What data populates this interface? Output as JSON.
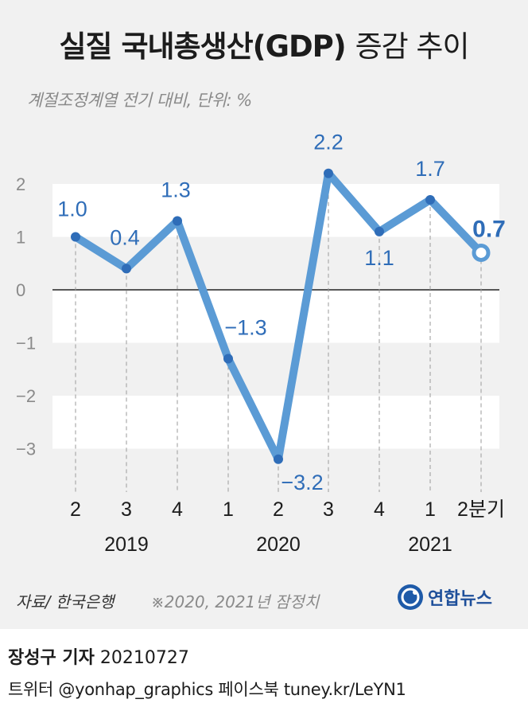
{
  "header": {
    "title_main": "실질 국내총생산(GDP)",
    "title_rest": "증감 추이",
    "subtitle": "계절조정계열 전기 대비, 단위: %"
  },
  "chart_data": {
    "type": "line",
    "title": "실질 국내총생산(GDP) 증감 추이",
    "subtitle": "계절조정계열 전기 대비, 단위: %",
    "unit": "%",
    "categories": [
      "2",
      "3",
      "4",
      "1",
      "2",
      "3",
      "4",
      "1",
      "2분기"
    ],
    "years": [
      {
        "label": "2019",
        "at": 1
      },
      {
        "label": "2020",
        "at": 4
      },
      {
        "label": "2021",
        "at": 7
      }
    ],
    "series": [
      {
        "values": [
          1.0,
          0.4,
          1.3,
          -1.3,
          -3.2,
          2.2,
          1.1,
          1.7,
          0.7
        ]
      }
    ],
    "data_labels": [
      "1.0",
      "0.4",
      "1.3",
      "−1.3",
      "−3.2",
      "2.2",
      "1.1",
      "1.7",
      "0.7"
    ],
    "yticks": [
      "2",
      "1",
      "0",
      "−1",
      "−2",
      "−3"
    ],
    "ylim": [
      -3.5,
      2.5
    ],
    "line_color": "#5b9bd5",
    "label_color": "#2f6db8"
  },
  "footer": {
    "source": "자료/ 한국은행",
    "note": "※2020, 2021년 잠정치",
    "logo": "연합뉴스",
    "credit_name": "장성구 기자",
    "credit_date": "20210727",
    "social": "트위터 @yonhap_graphics  페이스북 tuney.kr/LeYN1"
  }
}
